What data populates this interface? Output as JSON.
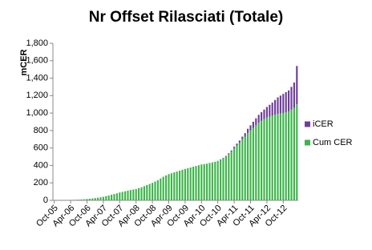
{
  "chart_data": {
    "type": "stacked_bar",
    "title": "Nr Offset Rilasciati (Totale)",
    "y_label": "mCER",
    "categories": [
      "Oct-05",
      null,
      null,
      null,
      null,
      null,
      "Apr-06",
      null,
      null,
      null,
      null,
      null,
      "Oct-06",
      null,
      null,
      null,
      null,
      null,
      "Apr-07",
      null,
      null,
      null,
      null,
      null,
      "Oct-07",
      null,
      null,
      null,
      null,
      null,
      "Apr-08",
      null,
      null,
      null,
      null,
      null,
      "Oct-08",
      null,
      null,
      null,
      null,
      null,
      "Apr-09",
      null,
      null,
      null,
      null,
      null,
      "Oct-09",
      null,
      null,
      null,
      null,
      null,
      "Apr-10",
      null,
      null,
      null,
      null,
      null,
      "Oct-10",
      null,
      null,
      null,
      null,
      null,
      "Apr-11",
      null,
      null,
      null,
      null,
      null,
      "Oct-11",
      null,
      null,
      null,
      null,
      null,
      "Apr-12",
      null,
      null,
      null,
      null,
      null,
      "Oct-12",
      null,
      null,
      null,
      null,
      null
    ],
    "series": [
      {
        "name": "iCER",
        "color": "#6f3f98",
        "values": [
          0,
          0,
          0,
          0,
          0,
          0,
          0,
          0,
          0,
          0,
          0,
          0,
          0,
          0,
          0,
          0,
          0,
          0,
          0,
          0,
          0,
          0,
          0,
          0,
          0,
          0,
          0,
          0,
          0,
          0,
          0,
          0,
          0,
          0,
          0,
          0,
          0,
          0,
          0,
          0,
          0,
          0,
          0,
          0,
          0,
          0,
          0,
          0,
          0,
          0,
          0,
          0,
          0,
          0,
          0,
          0,
          0,
          0,
          0,
          0,
          2,
          4,
          6,
          8,
          10,
          12,
          15,
          20,
          25,
          30,
          40,
          50,
          60,
          70,
          80,
          90,
          100,
          110,
          120,
          135,
          150,
          170,
          190,
          205,
          220,
          230,
          240,
          260,
          290,
          440
        ]
      },
      {
        "name": "Cum CER",
        "color": "#3db54a",
        "values": [
          1,
          2,
          2,
          3,
          4,
          5,
          5,
          6,
          7,
          8,
          10,
          12,
          15,
          18,
          22,
          26,
          30,
          35,
          40,
          48,
          56,
          64,
          72,
          80,
          90,
          97,
          104,
          111,
          118,
          124,
          130,
          140,
          150,
          162,
          175,
          188,
          200,
          215,
          230,
          250,
          270,
          285,
          300,
          310,
          320,
          330,
          340,
          350,
          360,
          368,
          376,
          385,
          393,
          402,
          410,
          415,
          420,
          428,
          435,
          442,
          450,
          465,
          480,
          500,
          530,
          560,
          600,
          630,
          660,
          700,
          730,
          770,
          800,
          830,
          860,
          890,
          910,
          930,
          950,
          960,
          970,
          980,
          990,
          995,
          1000,
          1010,
          1020,
          1040,
          1060,
          1100
        ]
      }
    ],
    "ylim": [
      0,
      1800
    ],
    "yticks": [
      0,
      200,
      400,
      600,
      800,
      {
        "value": 1000,
        "label": "1,000"
      },
      {
        "value": 1200,
        "label": "1,200"
      },
      {
        "value": 1400,
        "label": "1,400"
      },
      {
        "value": 1600,
        "label": "1,600"
      },
      {
        "value": 1800,
        "label": "1,800"
      }
    ],
    "grid": false,
    "legend": "right"
  }
}
